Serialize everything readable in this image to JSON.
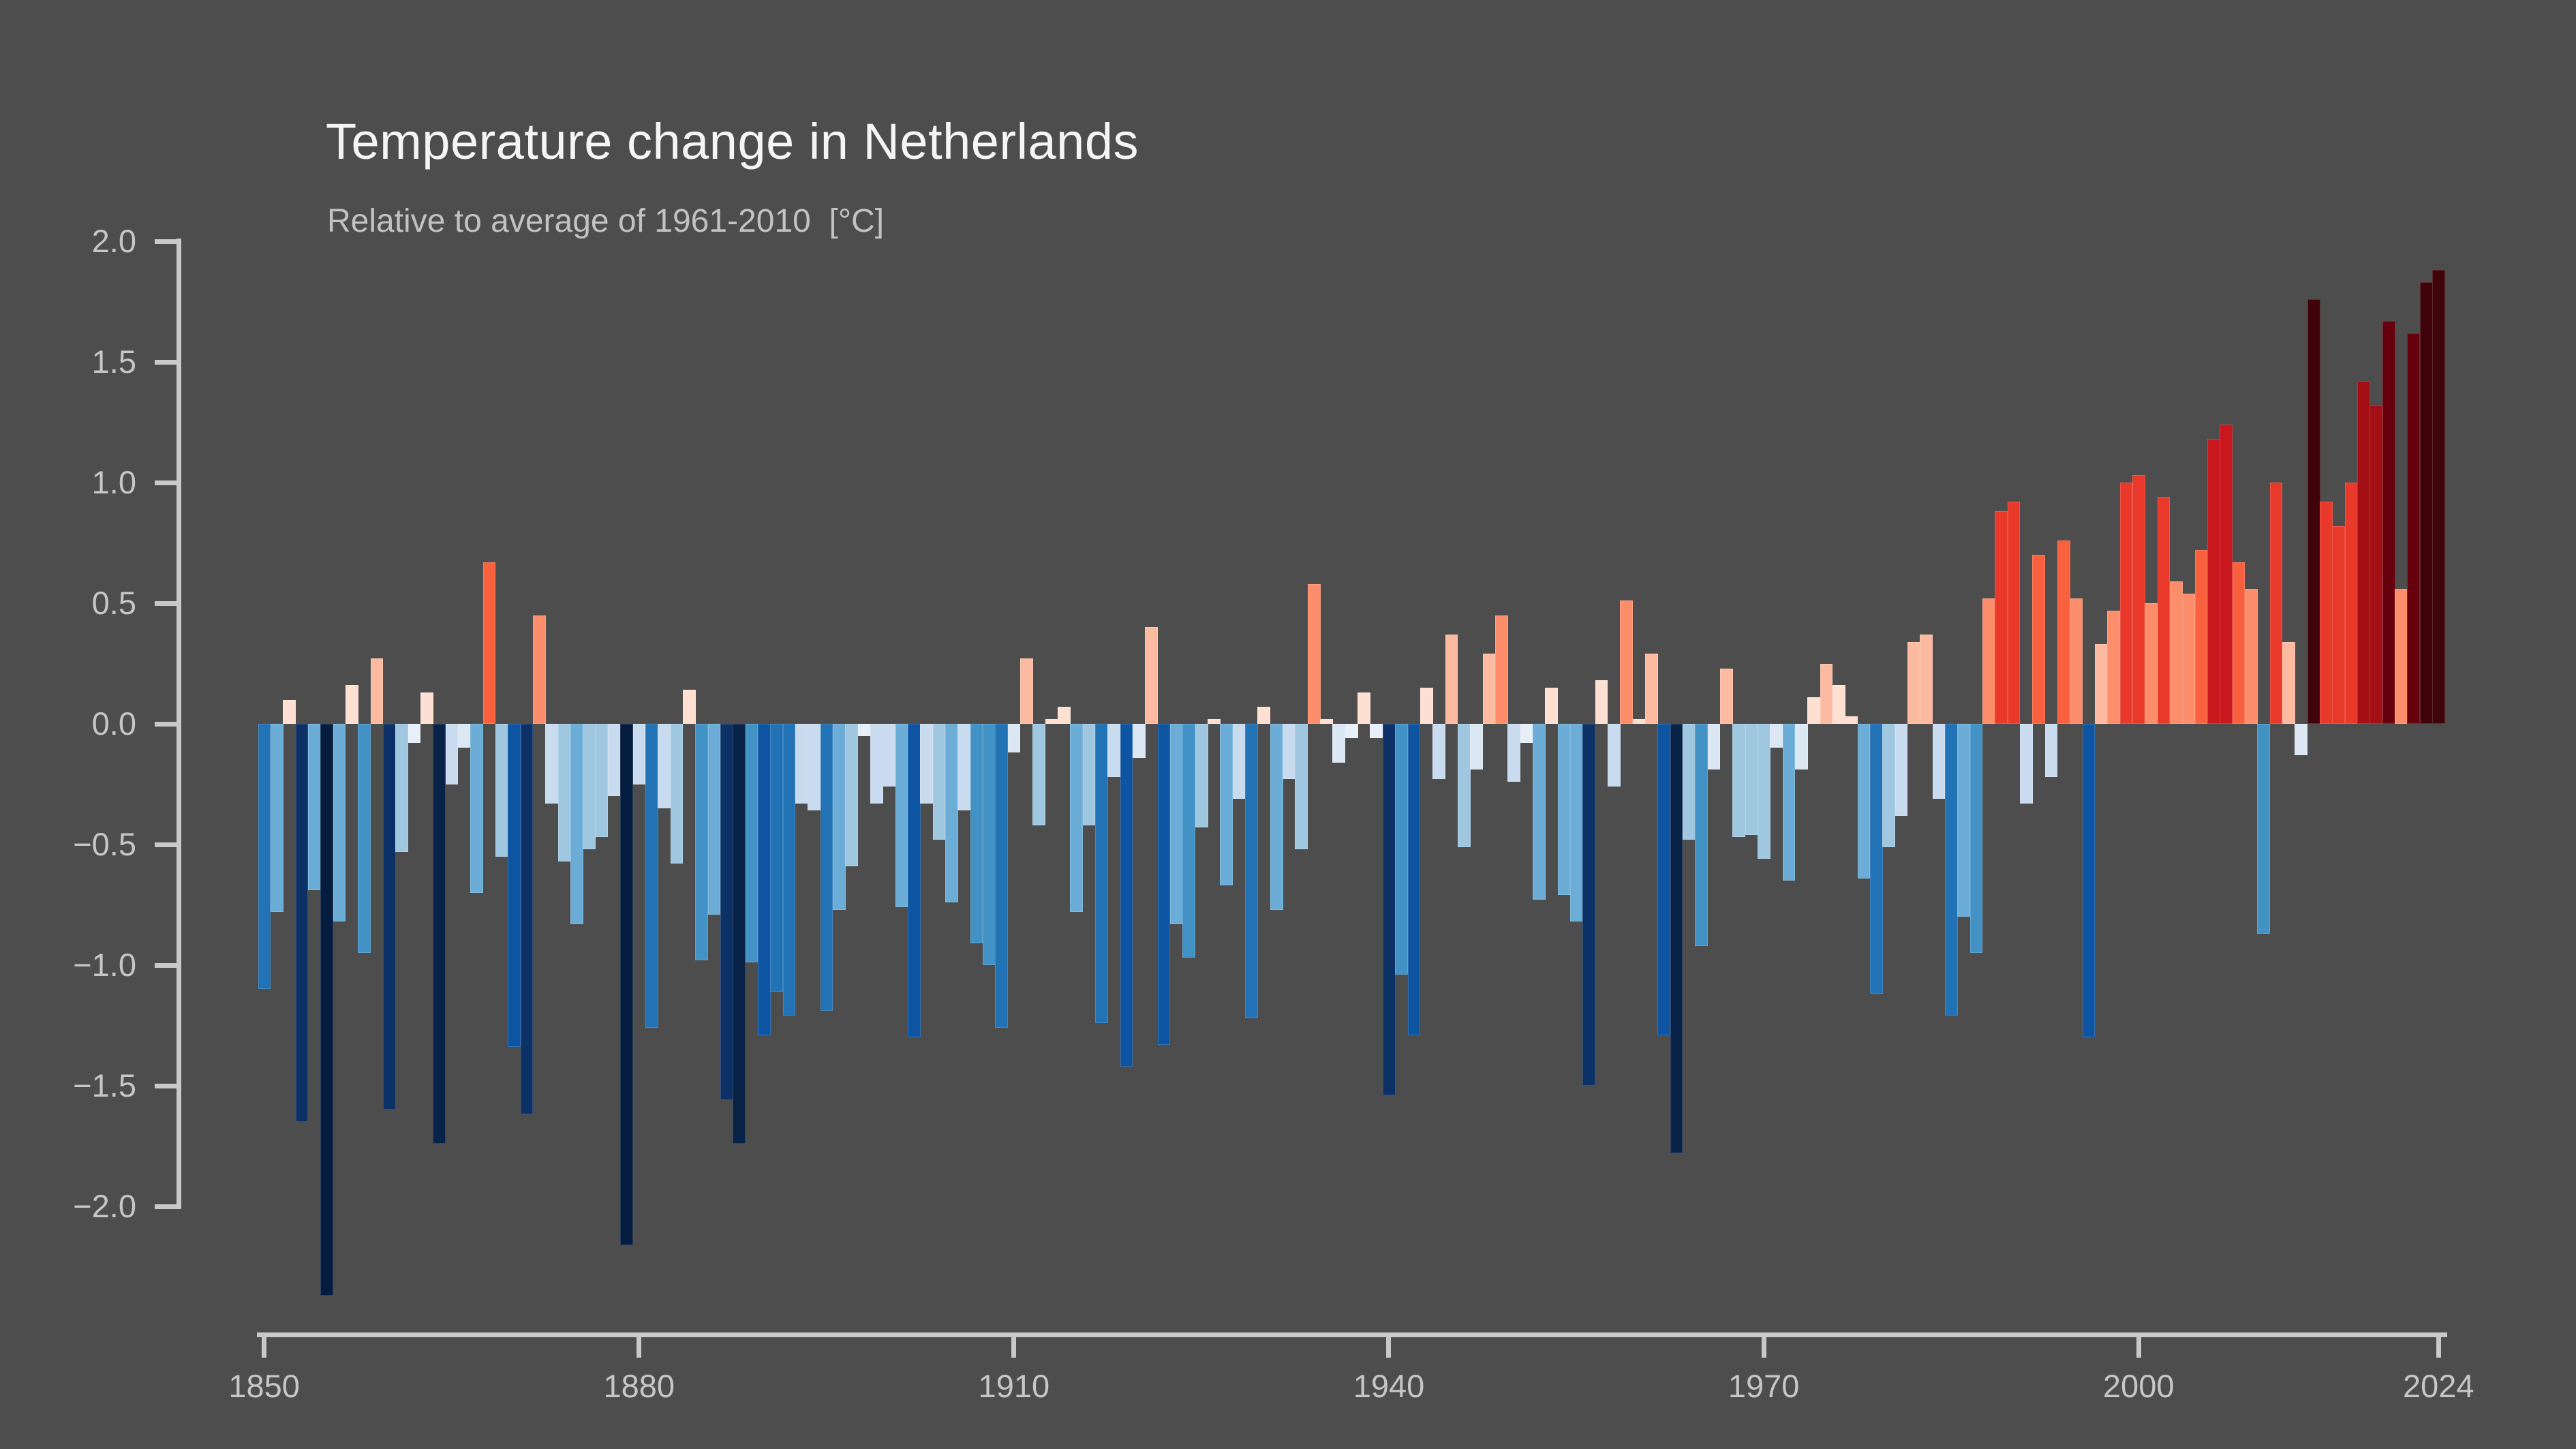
{
  "header": {
    "title": "Temperature change in Netherlands",
    "subtitle": "Relative to average of 1961-2010  [°C]"
  },
  "chart_data": {
    "type": "bar",
    "title": "Temperature change in Netherlands",
    "subtitle": "Relative to average of 1961-2010  [°C]",
    "ylabel": "",
    "xlabel": "",
    "grid": false,
    "legend": null,
    "x_start_year": 1850,
    "x_end_year": 2024,
    "ylim": [
      -2.53,
      2.0
    ],
    "yticks": [
      2.0,
      1.5,
      1.0,
      0.5,
      0.0,
      -0.5,
      -1.0,
      -1.5,
      -2.0
    ],
    "ytick_labels": [
      "2.0",
      "1.5",
      "1.0",
      "0.5",
      "0.0",
      "−0.5",
      "−1.0",
      "−1.5",
      "−2.0"
    ],
    "xticks": [
      1850,
      1880,
      1910,
      1940,
      1970,
      2000,
      2024
    ],
    "xtick_labels": [
      "1850",
      "1880",
      "1910",
      "1940",
      "1970",
      "2000",
      "2024"
    ],
    "values": [
      -1.1,
      -0.78,
      0.1,
      -1.65,
      -0.69,
      -2.37,
      -0.82,
      0.16,
      -0.95,
      0.27,
      -1.6,
      -0.53,
      -0.08,
      0.13,
      -1.74,
      -0.25,
      -0.1,
      -0.7,
      0.67,
      -0.55,
      -1.34,
      -1.62,
      0.45,
      -0.33,
      -0.57,
      -0.83,
      -0.52,
      -0.47,
      -0.3,
      -2.16,
      -0.25,
      -1.26,
      -0.35,
      -0.58,
      0.14,
      -0.98,
      -0.79,
      -1.56,
      -1.74,
      -0.99,
      -1.29,
      -1.11,
      -1.21,
      -0.33,
      -0.36,
      -1.19,
      -0.77,
      -0.59,
      -0.05,
      -0.33,
      -0.26,
      -0.76,
      -1.3,
      -0.33,
      -0.48,
      -0.74,
      -0.36,
      -0.91,
      -1.0,
      -1.26,
      -0.12,
      0.27,
      -0.42,
      0.02,
      0.07,
      -0.78,
      -0.42,
      -1.24,
      -0.22,
      -1.42,
      -0.14,
      0.4,
      -1.33,
      -0.83,
      -0.97,
      -0.43,
      0.02,
      -0.67,
      -0.31,
      -1.22,
      0.07,
      -0.77,
      -0.23,
      -0.52,
      0.58,
      0.02,
      -0.16,
      -0.06,
      0.13,
      -0.06,
      -1.54,
      -1.04,
      -1.29,
      0.15,
      -0.23,
      0.37,
      -0.51,
      -0.19,
      0.29,
      0.45,
      -0.24,
      -0.08,
      -0.73,
      0.15,
      -0.71,
      -0.82,
      -1.5,
      0.18,
      -0.26,
      0.51,
      0.02,
      0.29,
      -1.29,
      -1.78,
      -0.48,
      -0.92,
      -0.19,
      0.23,
      -0.47,
      -0.46,
      -0.56,
      -0.1,
      -0.65,
      -0.19,
      0.11,
      0.25,
      0.16,
      0.03,
      -0.64,
      -1.12,
      -0.51,
      -0.38,
      0.34,
      0.37,
      -0.31,
      -1.21,
      -0.8,
      -0.95,
      0.52,
      0.88,
      0.92,
      -0.33,
      0.7,
      -0.22,
      0.76,
      0.52,
      -1.3,
      0.33,
      0.47,
      1.0,
      1.03,
      0.5,
      0.94,
      0.59,
      0.54,
      0.72,
      1.18,
      1.24,
      0.67,
      0.56,
      -0.87,
      1.0,
      0.34,
      -0.13,
      1.76,
      0.92,
      0.82,
      1.0,
      1.42,
      1.32,
      1.67,
      0.56,
      1.62,
      1.83,
      1.88
    ],
    "color_scale": {
      "positive": {
        "thresholds": [
          0.2,
          0.44,
          0.6,
          0.8,
          1.05,
          1.28,
          1.48,
          1.72
        ],
        "colors": [
          "#fee0d2",
          "#fcbba1",
          "#fc8e6b",
          "#f9613e",
          "#e8392b",
          "#c9181d",
          "#a30f15",
          "#67000d",
          "#3f030a"
        ]
      },
      "negative": {
        "thresholds": [
          0.1,
          0.2,
          0.4,
          0.6,
          0.85,
          1.08,
          1.28,
          1.48,
          1.72,
          2.0
        ],
        "colors": [
          "#e7eff8",
          "#dbe7f3",
          "#c9dbee",
          "#9fc8e0",
          "#6badd6",
          "#4292c6",
          "#2272b6",
          "#0d55a2",
          "#0c3166",
          "#082248",
          "#041c3d"
        ]
      }
    },
    "colors": {
      "background": "#4d4d4d",
      "axis": "#c9c9c9",
      "tick_label": "#c6c6c6",
      "title": "#f5f5f5",
      "subtitle": "#c2c2c2"
    }
  }
}
